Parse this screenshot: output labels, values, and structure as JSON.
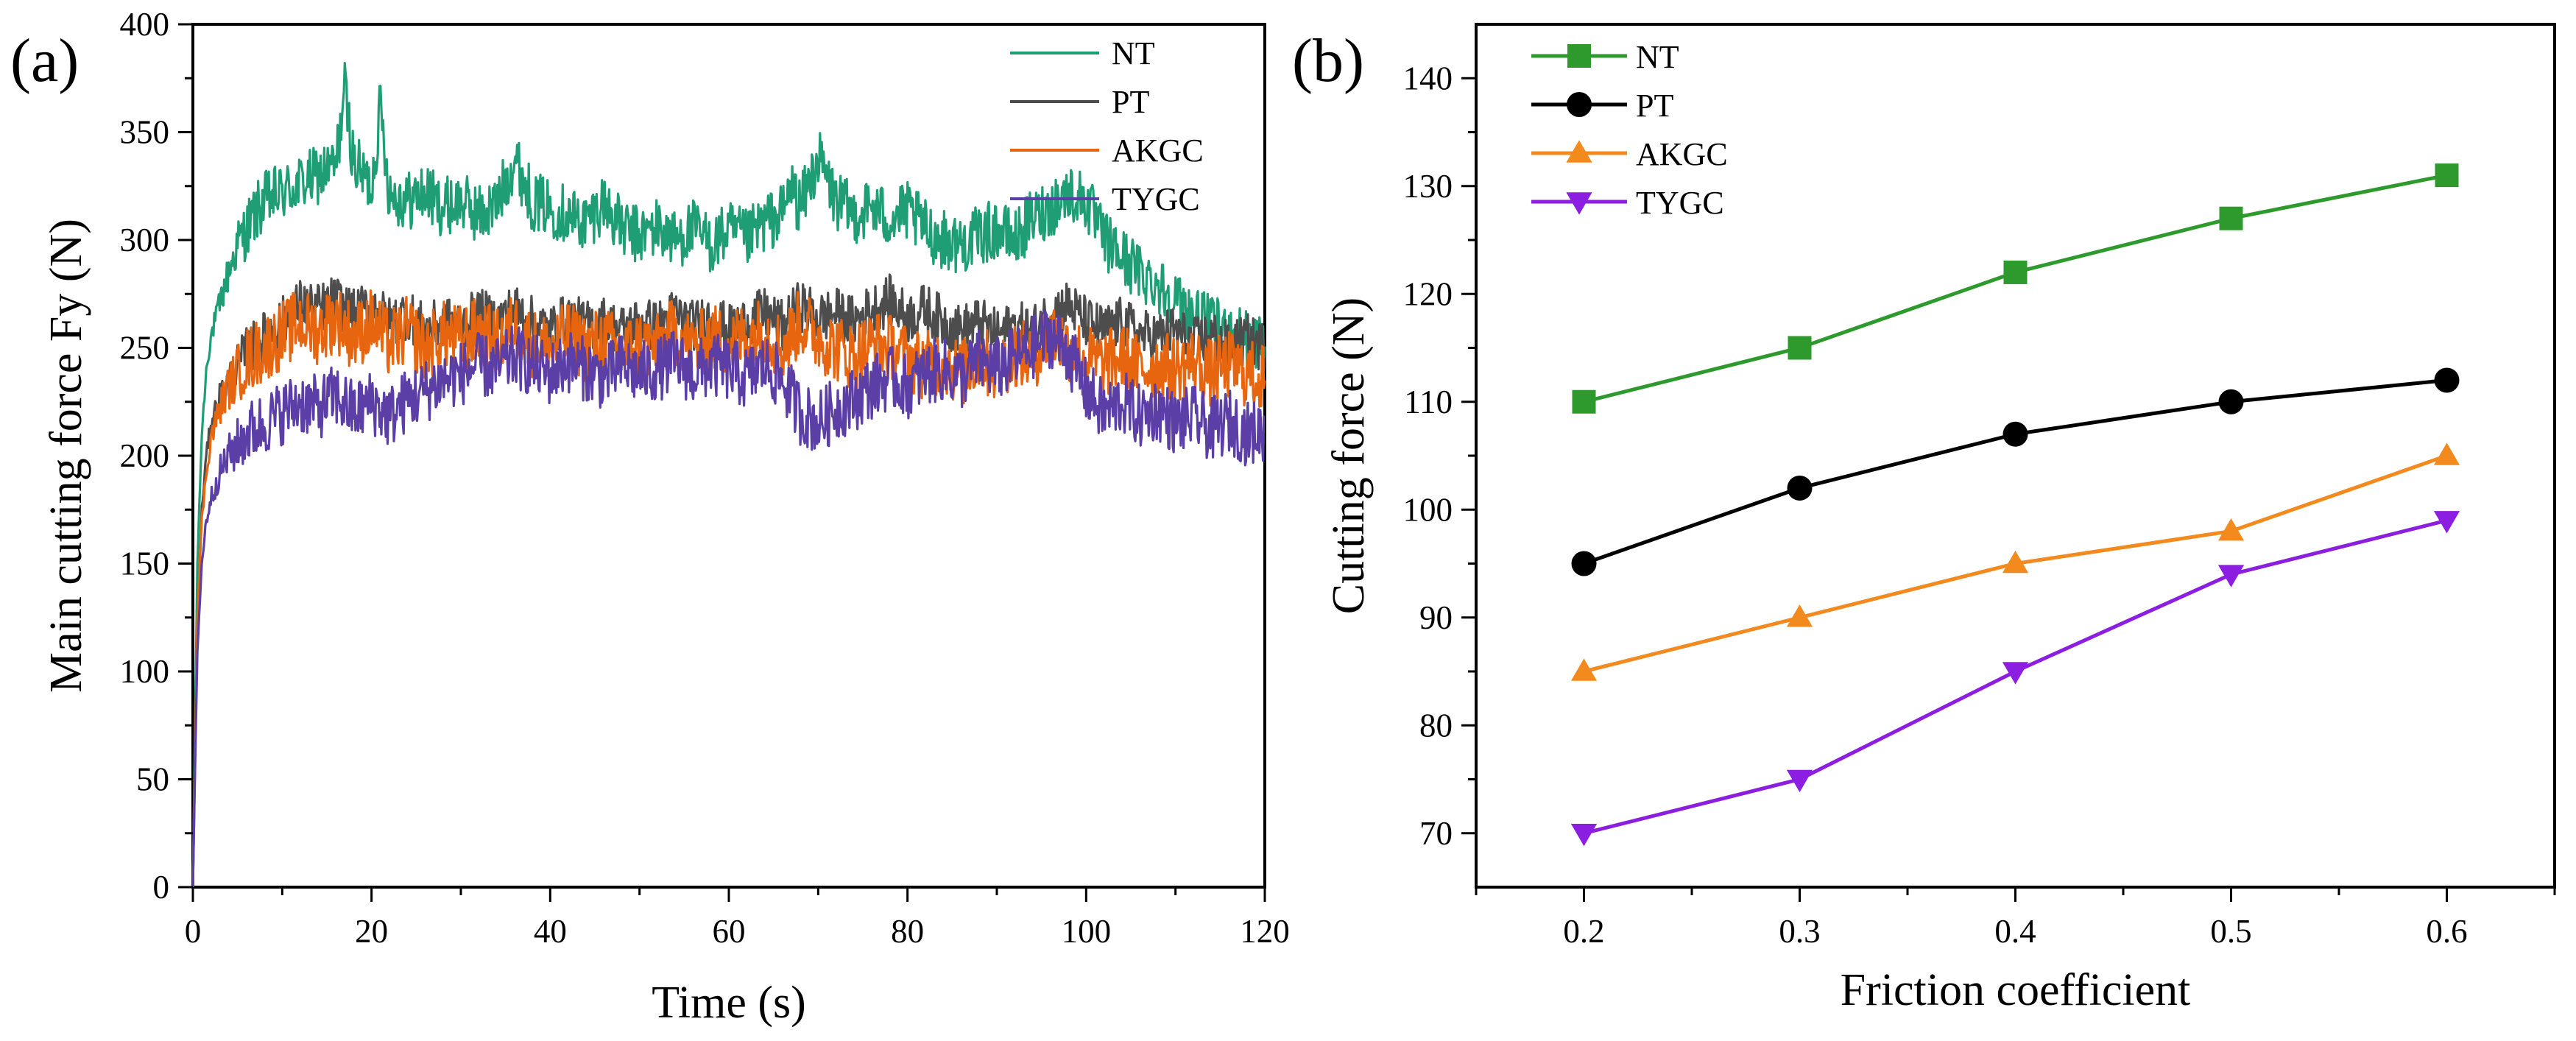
{
  "chart_data": [
    {
      "type": "line",
      "panel_label": "(a)",
      "title": "",
      "xlabel": "Time (s)",
      "ylabel": "Main cutting force Fy (N)",
      "xlim": [
        0,
        120
      ],
      "ylim": [
        0,
        400
      ],
      "xticks": [
        0,
        20,
        40,
        60,
        80,
        100,
        120
      ],
      "yticks": [
        0,
        50,
        100,
        150,
        200,
        250,
        300,
        350,
        400
      ],
      "legend_position": "top-right",
      "series": [
        {
          "name": "NT",
          "color": "#1f9e76",
          "x": [
            0,
            0.5,
            1,
            1.5,
            2,
            3,
            4,
            5,
            6,
            7,
            8,
            9,
            10,
            12,
            14,
            16,
            17,
            18,
            19,
            20,
            21,
            22,
            24,
            26,
            28,
            30,
            32,
            34,
            36,
            38,
            40,
            42,
            44,
            46,
            48,
            50,
            52,
            54,
            56,
            58,
            60,
            62,
            64,
            66,
            67,
            68,
            70,
            72,
            74,
            76,
            78,
            80,
            82,
            84,
            86,
            88,
            90,
            92,
            94,
            96,
            98,
            100,
            102,
            104,
            106,
            108,
            110,
            112,
            114,
            116,
            118,
            120
          ],
          "values": [
            0,
            150,
            210,
            240,
            255,
            270,
            285,
            298,
            305,
            312,
            318,
            320,
            322,
            326,
            330,
            334,
            370,
            336,
            330,
            325,
            362,
            322,
            318,
            322,
            315,
            318,
            312,
            316,
            338,
            318,
            315,
            312,
            308,
            318,
            305,
            302,
            306,
            300,
            305,
            298,
            304,
            300,
            308,
            312,
            325,
            315,
            338,
            318,
            312,
            315,
            310,
            313,
            305,
            300,
            298,
            302,
            305,
            300,
            310,
            315,
            322,
            318,
            300,
            292,
            285,
            280,
            272,
            265,
            260,
            258,
            255,
            252
          ]
        },
        {
          "name": "PT",
          "color": "#4d4d4d",
          "x": [
            0,
            0.5,
            1,
            1.5,
            2,
            3,
            4,
            5,
            6,
            8,
            10,
            12,
            14,
            16,
            18,
            20,
            22,
            24,
            26,
            28,
            30,
            32,
            34,
            36,
            38,
            40,
            42,
            44,
            46,
            48,
            50,
            52,
            54,
            56,
            58,
            60,
            62,
            64,
            66,
            68,
            70,
            72,
            74,
            76,
            78,
            80,
            82,
            84,
            86,
            88,
            90,
            92,
            94,
            96,
            98,
            100,
            102,
            104,
            106,
            108,
            110,
            112,
            114,
            116,
            118,
            120
          ],
          "values": [
            0,
            120,
            175,
            200,
            215,
            228,
            235,
            242,
            248,
            255,
            262,
            270,
            268,
            272,
            265,
            270,
            262,
            266,
            258,
            262,
            260,
            266,
            262,
            268,
            262,
            258,
            264,
            260,
            262,
            258,
            262,
            260,
            266,
            260,
            264,
            258,
            262,
            266,
            260,
            270,
            264,
            266,
            262,
            268,
            272,
            264,
            268,
            262,
            258,
            262,
            256,
            260,
            258,
            266,
            270,
            262,
            258,
            262,
            256,
            255,
            258,
            252,
            256,
            250,
            254,
            250
          ]
        },
        {
          "name": "AKGC",
          "color": "#e8650f",
          "x": [
            0,
            0.5,
            1,
            1.5,
            2,
            3,
            4,
            5,
            6,
            8,
            10,
            12,
            14,
            16,
            18,
            20,
            22,
            24,
            26,
            28,
            30,
            32,
            34,
            36,
            38,
            40,
            42,
            44,
            46,
            48,
            50,
            52,
            54,
            56,
            58,
            60,
            62,
            64,
            66,
            68,
            70,
            72,
            74,
            76,
            78,
            80,
            82,
            84,
            86,
            88,
            90,
            92,
            94,
            96,
            98,
            100,
            102,
            104,
            106,
            108,
            110,
            112,
            114,
            116,
            118,
            120
          ],
          "values": [
            0,
            125,
            170,
            192,
            208,
            222,
            232,
            238,
            244,
            250,
            256,
            262,
            258,
            264,
            255,
            262,
            252,
            258,
            250,
            256,
            254,
            258,
            252,
            260,
            252,
            250,
            256,
            250,
            254,
            248,
            252,
            250,
            258,
            250,
            255,
            252,
            256,
            258,
            250,
            262,
            255,
            250,
            246,
            252,
            250,
            245,
            242,
            244,
            238,
            245,
            240,
            248,
            245,
            258,
            250,
            245,
            242,
            246,
            240,
            242,
            240,
            244,
            238,
            242,
            238,
            236
          ]
        },
        {
          "name": "TYGC",
          "color": "#5b3ea6",
          "x": [
            0,
            0.5,
            1,
            1.5,
            2,
            3,
            4,
            5,
            6,
            8,
            10,
            12,
            14,
            16,
            18,
            20,
            22,
            24,
            26,
            28,
            30,
            32,
            34,
            36,
            38,
            40,
            42,
            44,
            46,
            48,
            50,
            52,
            54,
            56,
            58,
            60,
            62,
            64,
            66,
            68,
            70,
            72,
            74,
            76,
            78,
            80,
            82,
            84,
            86,
            88,
            90,
            92,
            94,
            96,
            98,
            100,
            102,
            104,
            106,
            108,
            110,
            112,
            114,
            116,
            118,
            120
          ],
          "values": [
            0,
            110,
            150,
            170,
            180,
            192,
            200,
            205,
            210,
            215,
            220,
            225,
            222,
            228,
            220,
            225,
            218,
            226,
            230,
            235,
            238,
            242,
            240,
            246,
            242,
            238,
            244,
            240,
            236,
            242,
            238,
            240,
            244,
            238,
            242,
            240,
            236,
            242,
            235,
            220,
            215,
            222,
            226,
            232,
            236,
            232,
            238,
            240,
            236,
            244,
            240,
            245,
            250,
            256,
            248,
            230,
            220,
            225,
            218,
            222,
            215,
            218,
            212,
            216,
            210,
            212
          ]
        }
      ]
    },
    {
      "type": "line",
      "panel_label": "(b)",
      "title": "",
      "xlabel": "Friction coefficient",
      "ylabel": "Cutting force (N)",
      "xlim": [
        0.15,
        0.65
      ],
      "ylim": [
        65,
        145
      ],
      "xticks": [
        0.2,
        0.3,
        0.4,
        0.5,
        0.6
      ],
      "xtick_labels": [
        "0.2",
        "0.3",
        "0.4",
        "0.5",
        "0.6"
      ],
      "yticks": [
        70,
        80,
        90,
        100,
        110,
        120,
        130,
        140
      ],
      "legend_position": "top-left",
      "x": [
        0.2,
        0.3,
        0.4,
        0.5,
        0.6
      ],
      "series": [
        {
          "name": "NT",
          "color": "#2e9a2e",
          "marker": "square",
          "values": [
            110,
            115,
            122,
            127,
            131
          ]
        },
        {
          "name": "PT",
          "color": "#000000",
          "marker": "circle",
          "values": [
            95,
            102,
            107,
            110,
            112
          ]
        },
        {
          "name": "AKGC",
          "color": "#f28a1d",
          "marker": "triangle-up",
          "values": [
            85,
            90,
            95,
            98,
            105
          ]
        },
        {
          "name": "TYGC",
          "color": "#8b1ee0",
          "marker": "triangle-down",
          "values": [
            70,
            75,
            85,
            94,
            99
          ]
        }
      ]
    }
  ]
}
